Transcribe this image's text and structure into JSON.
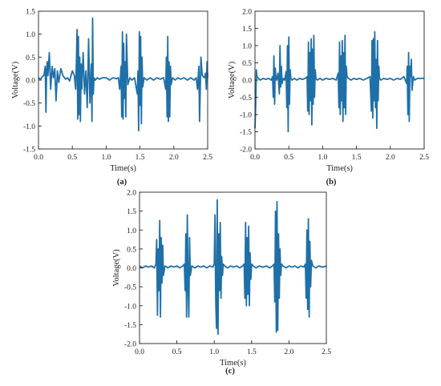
{
  "chart_data": [
    {
      "type": "line",
      "panel_label": "(a)",
      "xlabel": "Time(s)",
      "ylabel": "Voltage(V)",
      "xlim": [
        0.0,
        2.5
      ],
      "ylim": [
        -1.5,
        1.5
      ],
      "xticks": [
        "0.0",
        "0.5",
        "1.0",
        "1.5",
        "2.0",
        "2.5"
      ],
      "yticks": [
        "-1.5",
        "-1.0",
        "-0.5",
        "0.0",
        "0.5",
        "1.0",
        "1.5"
      ],
      "grid": false,
      "legend": "none",
      "color": "#1f6fa8",
      "series": [
        {
          "x": [
            0.0,
            0.03,
            0.06,
            0.08,
            0.1,
            0.11,
            0.12,
            0.13,
            0.14,
            0.16,
            0.18,
            0.2,
            0.22,
            0.24,
            0.26,
            0.28,
            0.3,
            0.33,
            0.36,
            0.4,
            0.43,
            0.46,
            0.5,
            0.53,
            0.55,
            0.56,
            0.57,
            0.58,
            0.59,
            0.6,
            0.61,
            0.62,
            0.63,
            0.64,
            0.66,
            0.68,
            0.7,
            0.72,
            0.74,
            0.76,
            0.78,
            0.79,
            0.8,
            0.81,
            0.82,
            0.84,
            0.87,
            0.9,
            0.95,
            1.0,
            1.05,
            1.1,
            1.15,
            1.18,
            1.2,
            1.22,
            1.23,
            1.24,
            1.25,
            1.26,
            1.27,
            1.28,
            1.29,
            1.3,
            1.32,
            1.35,
            1.38,
            1.42,
            1.46,
            1.47,
            1.48,
            1.49,
            1.5,
            1.51,
            1.52,
            1.53,
            1.54,
            1.56,
            1.6,
            1.65,
            1.7,
            1.75,
            1.8,
            1.85,
            1.88,
            1.89,
            1.9,
            1.91,
            1.92,
            1.93,
            1.94,
            1.95,
            1.96,
            1.98,
            2.02,
            2.06,
            2.1,
            2.15,
            2.2,
            2.25,
            2.3,
            2.33,
            2.35,
            2.37,
            2.38,
            2.4,
            2.42,
            2.45,
            2.47,
            2.48,
            2.49,
            2.5
          ],
          "y": [
            0.05,
            0.02,
            0.08,
            0.1,
            0.3,
            -0.7,
            0.2,
            0.4,
            0.1,
            0.6,
            -0.2,
            0.3,
            0.05,
            0.25,
            -0.45,
            0.2,
            -0.05,
            0.25,
            0.1,
            0.02,
            0.05,
            -0.02,
            0.2,
            0.1,
            -0.2,
            0.4,
            1.1,
            -0.85,
            0.95,
            -0.75,
            0.5,
            -0.9,
            0.35,
            -0.2,
            0.6,
            -0.3,
            0.2,
            -0.6,
            0.9,
            -0.5,
            0.35,
            -0.9,
            1.35,
            -0.3,
            0.05,
            0.0,
            0.05,
            0.02,
            0.05,
            0.05,
            0.0,
            0.05,
            0.03,
            0.05,
            -0.2,
            0.3,
            -0.8,
            1.05,
            -0.85,
            0.8,
            -0.4,
            0.4,
            -0.8,
            1.0,
            -0.1,
            0.05,
            0.0,
            0.05,
            -0.3,
            0.2,
            -1.1,
            1.05,
            -0.55,
            0.95,
            -0.95,
            0.5,
            -0.15,
            0.05,
            0.0,
            0.05,
            0.0,
            0.05,
            0.02,
            0.05,
            -0.2,
            0.5,
            -0.8,
            0.95,
            -0.9,
            0.4,
            -0.8,
            0.3,
            -0.1,
            0.05,
            0.0,
            0.05,
            0.02,
            0.05,
            0.0,
            0.05,
            0.0,
            0.05,
            -0.2,
            0.3,
            -0.9,
            0.5,
            0.1,
            0.05,
            0.15,
            -0.2,
            0.4,
            0.05
          ]
        }
      ]
    },
    {
      "type": "line",
      "panel_label": "(b)",
      "xlabel": "Time(s)",
      "ylabel": "Voltage(V)",
      "xlim": [
        0.0,
        2.5
      ],
      "ylim": [
        -2.0,
        2.0
      ],
      "xticks": [
        "0.0",
        "0.5",
        "1.0",
        "1.5",
        "2.0",
        "2.5"
      ],
      "yticks": [
        "-2.0",
        "-1.5",
        "-1.0",
        "-0.5",
        "0.0",
        "0.5",
        "1.0",
        "1.5",
        "2.0"
      ],
      "grid": false,
      "legend": "none",
      "color": "#1f6fa8",
      "series": [
        {
          "x": [
            0.0,
            0.01,
            0.02,
            0.03,
            0.05,
            0.08,
            0.12,
            0.16,
            0.2,
            0.24,
            0.26,
            0.27,
            0.28,
            0.29,
            0.3,
            0.31,
            0.32,
            0.34,
            0.36,
            0.37,
            0.38,
            0.39,
            0.4,
            0.42,
            0.44,
            0.46,
            0.47,
            0.48,
            0.49,
            0.5,
            0.51,
            0.52,
            0.53,
            0.55,
            0.58,
            0.62,
            0.66,
            0.7,
            0.74,
            0.77,
            0.78,
            0.79,
            0.8,
            0.81,
            0.82,
            0.83,
            0.84,
            0.85,
            0.86,
            0.87,
            0.88,
            0.89,
            0.9,
            0.92,
            0.96,
            1.0,
            1.05,
            1.1,
            1.15,
            1.2,
            1.23,
            1.24,
            1.25,
            1.26,
            1.27,
            1.28,
            1.29,
            1.3,
            1.31,
            1.32,
            1.33,
            1.34,
            1.35,
            1.36,
            1.38,
            1.42,
            1.46,
            1.5,
            1.55,
            1.6,
            1.65,
            1.7,
            1.72,
            1.73,
            1.74,
            1.75,
            1.76,
            1.77,
            1.78,
            1.79,
            1.8,
            1.81,
            1.82,
            1.83,
            1.84,
            1.86,
            1.9,
            1.95,
            2.0,
            2.05,
            2.1,
            2.15,
            2.2,
            2.24,
            2.25,
            2.26,
            2.27,
            2.28,
            2.29,
            2.3,
            2.31,
            2.32,
            2.34,
            2.36,
            2.4,
            2.45,
            2.5
          ],
          "y": [
            -1.4,
            -0.8,
            0.3,
            0.1,
            0.05,
            0.0,
            0.05,
            0.02,
            0.05,
            0.0,
            0.1,
            -0.5,
            0.7,
            -0.7,
            0.35,
            0.05,
            0.0,
            0.2,
            -0.4,
            1.0,
            -0.2,
            0.4,
            -0.1,
            0.05,
            0.0,
            0.25,
            -0.8,
            1.0,
            -1.5,
            1.25,
            -0.7,
            0.3,
            0.05,
            0.0,
            0.05,
            0.0,
            0.05,
            0.02,
            0.05,
            0.1,
            -0.9,
            1.1,
            -1.0,
            0.8,
            -0.6,
            1.2,
            -1.3,
            0.9,
            -0.7,
            1.3,
            -0.5,
            0.3,
            0.05,
            0.0,
            0.05,
            0.0,
            0.05,
            0.02,
            0.05,
            0.0,
            0.2,
            -0.8,
            1.1,
            -1.0,
            0.7,
            -0.6,
            1.15,
            -1.2,
            0.8,
            -0.8,
            1.3,
            -1.0,
            0.4,
            0.1,
            0.05,
            0.0,
            0.05,
            0.02,
            0.05,
            0.0,
            0.05,
            0.1,
            -0.9,
            1.15,
            -1.1,
            1.2,
            -0.6,
            1.4,
            -0.8,
            0.6,
            -1.4,
            1.15,
            -0.6,
            0.4,
            0.05,
            0.0,
            0.05,
            0.02,
            0.05,
            0.0,
            0.05,
            0.02,
            0.1,
            -0.1,
            0.4,
            -1.0,
            0.8,
            -1.2,
            0.4,
            0.1,
            0.6,
            -0.3,
            0.1,
            0.0,
            0.05,
            0.05,
            0.05
          ]
        }
      ]
    },
    {
      "type": "line",
      "panel_label": "(c)",
      "xlabel": "Time(s)",
      "ylabel": "Voltage(V)",
      "xlim": [
        0.0,
        2.5
      ],
      "ylim": [
        -2.0,
        2.0
      ],
      "xticks": [
        "0.0",
        "0.5",
        "1.0",
        "1.5",
        "2.0",
        "2.5"
      ],
      "yticks": [
        "-2.0",
        "-1.5",
        "-1.0",
        "-0.5",
        "0.0",
        "0.5",
        "1.0",
        "1.5",
        "2.0"
      ],
      "grid": false,
      "legend": "none",
      "color": "#1f6fa8",
      "series": [
        {
          "x": [
            0.0,
            0.04,
            0.08,
            0.12,
            0.16,
            0.2,
            0.22,
            0.23,
            0.24,
            0.25,
            0.26,
            0.27,
            0.28,
            0.29,
            0.3,
            0.31,
            0.32,
            0.34,
            0.38,
            0.42,
            0.46,
            0.5,
            0.54,
            0.58,
            0.6,
            0.61,
            0.62,
            0.63,
            0.64,
            0.65,
            0.66,
            0.67,
            0.68,
            0.7,
            0.74,
            0.78,
            0.82,
            0.86,
            0.9,
            0.94,
            0.98,
            1.0,
            1.01,
            1.02,
            1.03,
            1.04,
            1.05,
            1.06,
            1.07,
            1.08,
            1.09,
            1.1,
            1.11,
            1.12,
            1.14,
            1.18,
            1.22,
            1.26,
            1.3,
            1.34,
            1.38,
            1.4,
            1.41,
            1.42,
            1.43,
            1.44,
            1.45,
            1.46,
            1.47,
            1.48,
            1.49,
            1.5,
            1.52,
            1.56,
            1.6,
            1.65,
            1.7,
            1.74,
            1.78,
            1.8,
            1.81,
            1.82,
            1.83,
            1.84,
            1.85,
            1.86,
            1.87,
            1.88,
            1.89,
            1.9,
            1.92,
            1.96,
            2.0,
            2.04,
            2.08,
            2.12,
            2.16,
            2.2,
            2.22,
            2.23,
            2.24,
            2.25,
            2.26,
            2.27,
            2.28,
            2.29,
            2.3,
            2.32,
            2.36,
            2.4,
            2.45,
            2.5
          ],
          "y": [
            0.05,
            0.0,
            0.05,
            0.02,
            0.05,
            0.0,
            0.1,
            0.75,
            -1.25,
            0.5,
            -0.6,
            1.25,
            -1.3,
            0.8,
            -0.4,
            0.6,
            -0.2,
            0.05,
            0.0,
            0.05,
            0.02,
            0.05,
            0.0,
            0.05,
            0.1,
            -0.6,
            0.9,
            -1.3,
            1.4,
            -0.5,
            -1.3,
            0.8,
            -0.2,
            0.05,
            0.0,
            0.05,
            0.02,
            0.05,
            0.0,
            0.05,
            0.02,
            0.1,
            1.4,
            -0.9,
            -1.6,
            1.8,
            -1.75,
            0.9,
            -0.6,
            1.2,
            -0.8,
            0.3,
            -0.2,
            0.1,
            0.05,
            0.0,
            0.05,
            0.02,
            0.05,
            0.0,
            0.05,
            0.1,
            -0.8,
            1.2,
            -1.0,
            0.8,
            -0.7,
            1.1,
            -1.0,
            0.4,
            -0.3,
            0.1,
            0.05,
            0.0,
            0.05,
            0.02,
            0.05,
            0.0,
            0.05,
            0.1,
            -0.9,
            1.5,
            -1.7,
            1.75,
            -1.65,
            0.9,
            -0.8,
            0.5,
            -0.2,
            0.1,
            0.05,
            0.0,
            0.05,
            0.02,
            0.05,
            0.0,
            0.05,
            0.02,
            0.1,
            -0.8,
            1.0,
            -1.1,
            1.3,
            -1.3,
            0.7,
            -0.5,
            0.2,
            0.05,
            0.0,
            0.05,
            0.02,
            0.05
          ]
        }
      ]
    }
  ]
}
